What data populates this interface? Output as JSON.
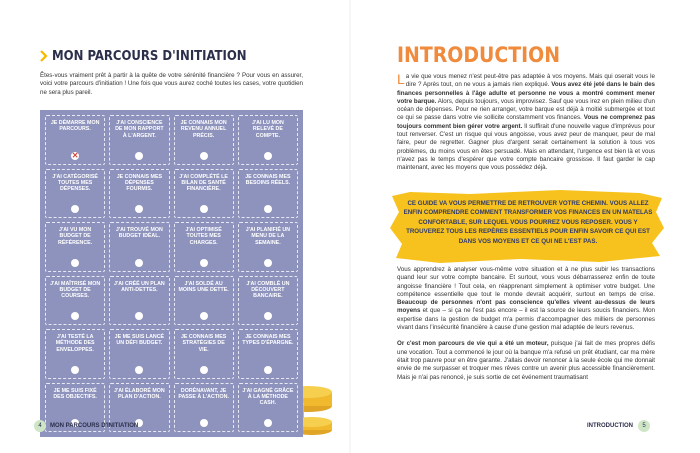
{
  "left_page": {
    "title": "MON PARCOURS D'INITIATION",
    "intro": "Êtes-vous vraiment prêt à partir à la quête de votre sérénité financière ? Pour vous en assurer, voici votre parcours d'initiation ! Une fois que vous aurez coché toutes les cases, votre quotidien ne sera plus pareil.",
    "checklist": [
      {
        "label": "JE DÉMARRE MON PARCOURS.",
        "checked": true
      },
      {
        "label": "J'AI CONSCIENCE DE MON RAPPORT À L'ARGENT.",
        "checked": false
      },
      {
        "label": "JE CONNAIS MON REVENU ANNUEL PRÉCIS.",
        "checked": false
      },
      {
        "label": "J'AI LU MON RELEVÉ DE COMPTE.",
        "checked": false
      },
      {
        "label": "J'AI CATÉGORISÉ TOUTES MES DÉPENSES.",
        "checked": false
      },
      {
        "label": "JE CONNAIS MES DÉPENSES FOURMIS.",
        "checked": false
      },
      {
        "label": "J'AI COMPLÉTÉ LE BILAN DE SANTÉ FINANCIÈRE.",
        "checked": false
      },
      {
        "label": "JE CONNAIS MES BESOINS RÉELS.",
        "checked": false
      },
      {
        "label": "J'AI VU MON BUDGET DE RÉFÉRENCE.",
        "checked": false
      },
      {
        "label": "J'AI TROUVÉ MON BUDGET IDÉAL.",
        "checked": false
      },
      {
        "label": "J'AI OPTIMISÉ TOUTES MES CHARGES.",
        "checked": false
      },
      {
        "label": "J'AI PLANIFIÉ UN MENU DE LA SEMAINE.",
        "checked": false
      },
      {
        "label": "J'AI MAÎTRISÉ MON BUDGET DE COURSES.",
        "checked": false
      },
      {
        "label": "J'AI CRÉÉ UN PLAN ANTI-DETTES.",
        "checked": false
      },
      {
        "label": "J'AI SOLDÉ AU MOINS UNE DETTE.",
        "checked": false
      },
      {
        "label": "J'AI COMBLÉ UN DÉCOUVERT BANCAIRE.",
        "checked": false
      },
      {
        "label": "J'AI TESTÉ LA MÉTHODE DES ENVELOPPES.",
        "checked": false
      },
      {
        "label": "JE ME SUIS LANCÉ UN DÉFI BUDGET.",
        "checked": false
      },
      {
        "label": "JE CONNAIS MES STRATÉGIES DE VIE.",
        "checked": false
      },
      {
        "label": "JE CONNAIS MES TYPES D'ÉPARGNE.",
        "checked": false
      },
      {
        "label": "JE ME SUIS FIXÉ DES OBJECTIFS.",
        "checked": false
      },
      {
        "label": "J'AI ÉLABORÉ MON PLAN D'ACTION.",
        "checked": false
      },
      {
        "label": "DORÉNAVANT, JE PASSE À L'ACTION.",
        "checked": false
      },
      {
        "label": "J'AI GAGNÉ GRÂCE À LA MÉTHODE CASH.",
        "checked": false
      }
    ],
    "footer": {
      "page_number": 4,
      "running_title": "MON PARCOURS D'INITIATION"
    }
  },
  "right_page": {
    "title": "INTRODUCTION",
    "opening": [
      {
        "text": "La vie que vous menez n'est peut-être pas adaptée à vos moyens. Mais qui oserait vous le dire ? Après tout, on ne vous a jamais rien expliqué. ",
        "bold": false
      },
      {
        "text": "Vous avez été jeté dans le bain des finances personnelles à l'âge adulte et personne ne vous a montré comment mener votre barque.",
        "bold": true
      },
      {
        "text": " Alors, depuis toujours, vous improvisez. Sauf que vous irez en plein milieu d'un océan de dépenses. Pour ne rien arranger, votre barque est déjà à moitié submergée et tout ce qui se passe dans votre vie sollicite constamment vos finances. ",
        "bold": false
      },
      {
        "text": "Vous ne comprenez pas toujours comment bien gérer votre argent.",
        "bold": true
      },
      {
        "text": " Il suffirait d'une nouvelle vague d'imprévus pour tout renverser. C'est un risque qui vous angoisse, vous avez peur de manquer, peur de mal faire, peur de regretter. Gagner plus d'argent serait certainement la solution à tous vos problèmes, du moins vous en êtes persuadé. Mais en attendant, l'urgence est bien là et vous n'avez pas le temps d'espérer que votre compte bancaire grossisse. Il faut garder le cap maintenant, avec les moyens que vous possédez déjà.",
        "bold": false
      }
    ],
    "callout": "CE GUIDE VA VOUS PERMETTRE DE RETROUVER VOTRE CHEMIN. VOUS ALLEZ ENFIN COMPRENDRE COMMENT TRANSFORMER VOS FINANCES EN UN MATELAS CONFORTABLE, SUR LEQUEL VOUS POURREZ VOUS REPOSER. VOUS Y TROUVEREZ TOUS LES REPÈRES ESSENTIELS POUR ENFIN SAVOIR CE QUI EST DANS VOS MOYENS ET CE QUI NE L'EST PAS.",
    "body": [
      [
        {
          "text": "Vous apprendrez à analyser vous-même votre situation et à ne plus subir les transactions quand leur sur votre compte bancaire. Et surtout, vous vous débarrasserez enfin de toute angoisse financière ! Tout cela, en réapprenant simplement à optimiser votre budget. Une compétence essentielle que tout le monde devrait acquérir, surtout en temps de crise. ",
          "bold": false
        },
        {
          "text": "Beaucoup de personnes n'ont pas conscience qu'elles vivent au-dessus de leurs moyens",
          "bold": true
        },
        {
          "text": " et que – si ça ne l'est pas encore – il est la source de leurs soucis financiers. Mon expertise dans la gestion de budget m'a permis d'accompagner des milliers de personnes vivant dans l'insécurité financière à cause d'une gestion mal adaptée de leurs revenus.",
          "bold": false
        }
      ],
      [
        {
          "text": "Or c'est mon parcours de vie qui a été un moteur,",
          "bold": true
        },
        {
          "text": " puisque j'ai fait de mes propres défis une vocation. Tout a commencé le jour où la banque m'a refusé un prêt étudiant, car ma mère était trop pauvre pour en être garante. J'allais devoir renoncer à la seule école qui me donnait envie de me surpasser et troquer mes rêves contre un avenir plus accessible financièrement. Mais je n'ai pas renoncé, je suis sortie de cet événement traumatisant",
          "bold": false
        }
      ]
    ],
    "footer": {
      "page_number": 5,
      "running_title": "INTRODUCTION"
    }
  }
}
